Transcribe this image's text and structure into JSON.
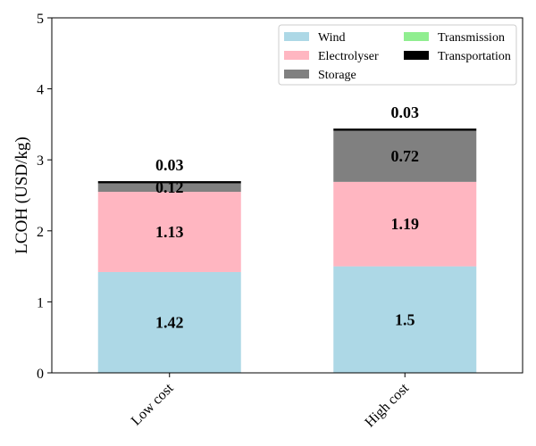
{
  "chart_data": {
    "type": "bar",
    "stacked": true,
    "categories": [
      "Low cost",
      "High cost"
    ],
    "series": [
      {
        "name": "Wind",
        "values": [
          1.42,
          1.5
        ],
        "color": "#add8e6"
      },
      {
        "name": "Electrolyser",
        "values": [
          1.13,
          1.19
        ],
        "color": "#ffb6c1"
      },
      {
        "name": "Storage",
        "values": [
          0.12,
          0.72
        ],
        "color": "#808080"
      },
      {
        "name": "Transmission",
        "values": [
          0.0,
          0.0
        ],
        "color": "#90ee90"
      },
      {
        "name": "Transportation",
        "values": [
          0.03,
          0.03
        ],
        "color": "#000000"
      }
    ],
    "data_labels": [
      [
        "1.42",
        "1.13",
        "0.12",
        "",
        "0.03"
      ],
      [
        "1.5",
        "1.19",
        "0.72",
        "",
        "0.03"
      ]
    ],
    "ylabel": "LCOH (USD/kg)",
    "xlabel": "",
    "title": "",
    "ylim": [
      0,
      5
    ],
    "yticks": [
      0,
      1,
      2,
      3,
      4,
      5
    ],
    "grid": false,
    "legend": {
      "placement": "top-right",
      "columns": 2
    }
  }
}
